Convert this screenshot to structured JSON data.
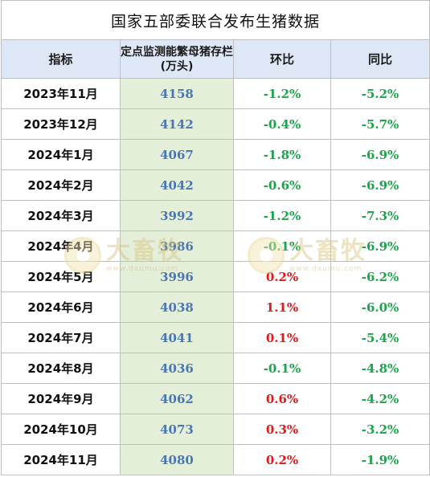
{
  "title": "国家五部委联合发布生猪数据",
  "headers": {
    "indicator": "指标",
    "inventory": "定点监测能繁母猪存栏(万头)",
    "mom": "环比",
    "yoy": "同比"
  },
  "rows": [
    {
      "month": "2023年11月",
      "inventory": "4158",
      "mom": "-1.2%",
      "yoy": "-5.2%"
    },
    {
      "month": "2023年12月",
      "inventory": "4142",
      "mom": "-0.4%",
      "yoy": "-5.7%"
    },
    {
      "month": "2024年1月",
      "inventory": "4067",
      "mom": "-1.8%",
      "yoy": "-6.9%"
    },
    {
      "month": "2024年2月",
      "inventory": "4042",
      "mom": "-0.6%",
      "yoy": "-6.9%"
    },
    {
      "month": "2024年3月",
      "inventory": "3992",
      "mom": "-1.2%",
      "yoy": "-7.3%"
    },
    {
      "month": "2024年4月",
      "inventory": "3986",
      "mom": "-0.1%",
      "yoy": "-6.9%"
    },
    {
      "month": "2024年5月",
      "inventory": "3996",
      "mom": "0.2%",
      "yoy": "-6.2%"
    },
    {
      "month": "2024年6月",
      "inventory": "4038",
      "mom": "1.1%",
      "yoy": "-6.0%"
    },
    {
      "month": "2024年7月",
      "inventory": "4041",
      "mom": "0.1%",
      "yoy": "-5.4%"
    },
    {
      "month": "2024年8月",
      "inventory": "4036",
      "mom": "-0.1%",
      "yoy": "-4.8%"
    },
    {
      "month": "2024年9月",
      "inventory": "4062",
      "mom": "0.6%",
      "yoy": "-4.2%"
    },
    {
      "month": "2024年10月",
      "inventory": "4073",
      "mom": "0.3%",
      "yoy": "-3.2%"
    },
    {
      "month": "2024年11月",
      "inventory": "4080",
      "mom": "0.2%",
      "yoy": "-1.9%"
    }
  ],
  "watermark": {
    "brand": "大畜牧",
    "site": "www.dxumu.com"
  },
  "colors": {
    "positive": "#e0191b",
    "negative": "#1aa54a",
    "inventory_bg": "#e3efd8",
    "header_bg": "#dde7f5"
  }
}
